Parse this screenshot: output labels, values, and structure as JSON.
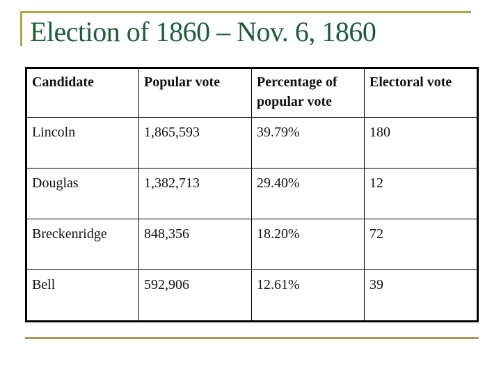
{
  "slide": {
    "title": "Election of 1860 – Nov. 6, 1860",
    "accent_color": "#b5a642",
    "title_color": "#1d5c3a"
  },
  "table": {
    "headers": [
      "Candidate",
      "Popular vote",
      "Percentage of popular vote",
      "Electoral vote"
    ],
    "rows": [
      {
        "candidate": "Lincoln",
        "popular_vote": "1,865,593",
        "percentage": "39.79%",
        "electoral_vote": "180"
      },
      {
        "candidate": "Douglas",
        "popular_vote": "1,382,713",
        "percentage": "29.40%",
        "electoral_vote": "12"
      },
      {
        "candidate": "Breckenridge",
        "popular_vote": "848,356",
        "percentage": "18.20%",
        "electoral_vote": "72"
      },
      {
        "candidate": "Bell",
        "popular_vote": "592,906",
        "percentage": "12.61%",
        "electoral_vote": "39"
      }
    ]
  }
}
